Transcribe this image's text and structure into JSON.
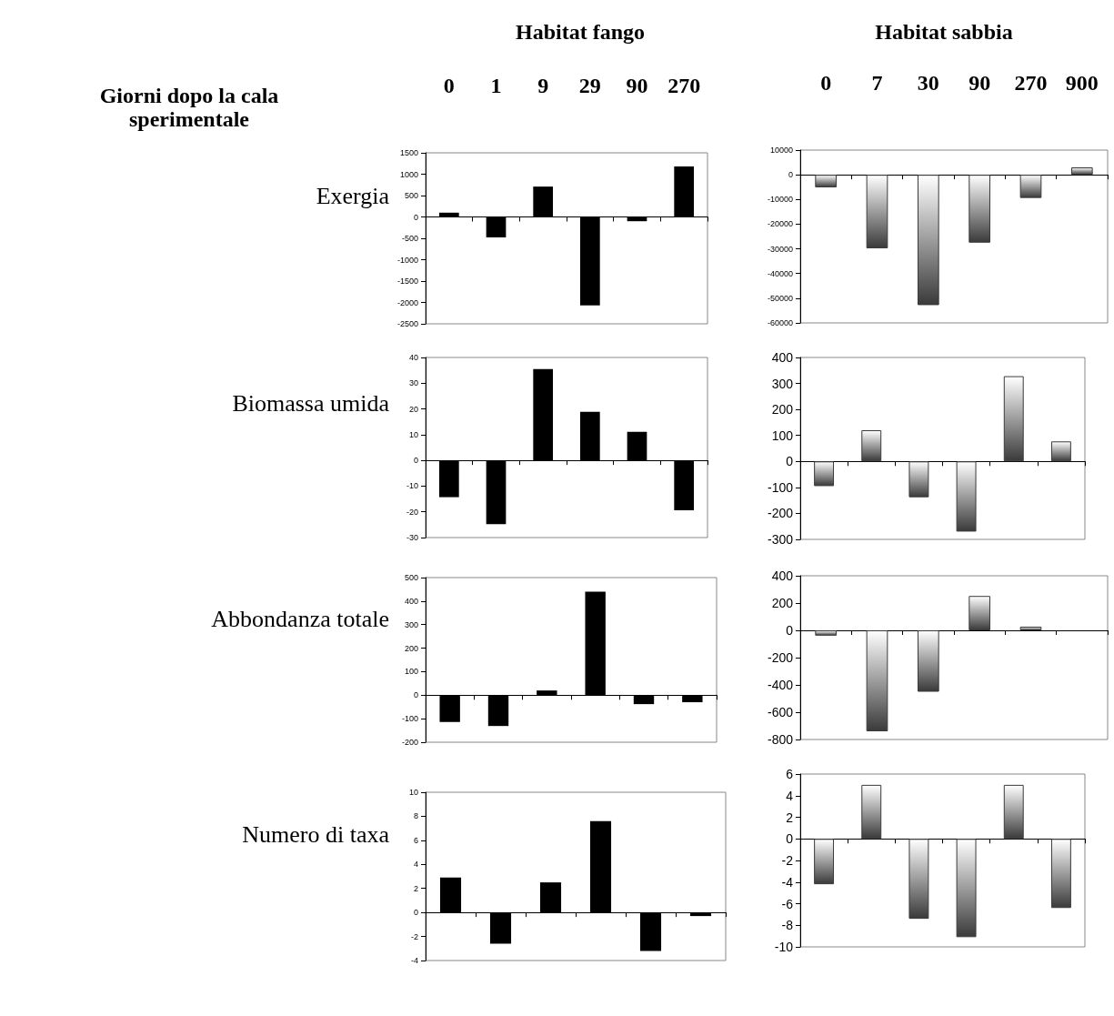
{
  "chart_data": [
    {
      "type": "bar",
      "title": "Habitat fango",
      "xlabel": "Giorni dopo la cala sperimentale",
      "ylabel": "Exergia",
      "categories": [
        "0",
        "1",
        "9",
        "29",
        "90",
        "270"
      ],
      "values": [
        100,
        -480,
        710,
        -2070,
        -100,
        1180
      ],
      "color": "#000000",
      "ylim": [
        -2500,
        1500
      ],
      "yticks": [
        -2500,
        -2000,
        -1500,
        -1000,
        -500,
        0,
        500,
        1000,
        1500
      ]
    },
    {
      "type": "bar",
      "ylabel": "Biomassa  umida",
      "categories": [
        "0",
        "1",
        "9",
        "29",
        "90",
        "270"
      ],
      "values": [
        -14.3,
        -24.8,
        35.5,
        18.9,
        11.1,
        -19.4
      ],
      "color": "#000000",
      "ylim": [
        -30,
        40
      ],
      "yticks": [
        -30,
        -20,
        -10,
        0,
        10,
        20,
        30,
        40
      ],
      "tick_labels": "y"
    },
    {
      "type": "bar",
      "ylabel": "Abbondanza totale",
      "categories": [
        "0",
        "1",
        "9",
        "29",
        "90",
        "270"
      ],
      "values": [
        -114,
        -131,
        20,
        440,
        -38,
        -30
      ],
      "color": "#000000",
      "ylim": [
        -200,
        500
      ],
      "yticks": [
        -200,
        -100,
        0,
        100,
        200,
        300,
        400,
        500
      ],
      "tick_labels": "y"
    },
    {
      "type": "bar",
      "ylabel": "Numero di taxa",
      "categories": [
        "0",
        "1",
        "9",
        "29",
        "90",
        "270"
      ],
      "values": [
        2.9,
        -2.6,
        2.5,
        7.6,
        -3.2,
        -0.3
      ],
      "color": "#000000",
      "ylim": [
        -4,
        10
      ],
      "yticks": [
        -4,
        -2,
        0,
        2,
        4,
        6,
        8,
        10
      ],
      "tick_labels": "y"
    },
    {
      "type": "bar",
      "title": "Habitat sabbia",
      "categories": [
        "0",
        "7",
        "30",
        "90",
        "270",
        "900"
      ],
      "values": [
        -5100,
        -29800,
        -52800,
        -27500,
        -9400,
        3000
      ],
      "color": "#3a3a3a",
      "ylim": [
        -60000,
        10000
      ],
      "yticks": [
        -60000,
        -50000,
        -40000,
        -30000,
        -20000,
        -10000,
        0,
        10000
      ]
    },
    {
      "type": "bar",
      "categories": [
        "0",
        "7",
        "30",
        "90",
        "270",
        "900"
      ],
      "values": [
        -95,
        120,
        -138,
        -270,
        328,
        77
      ],
      "color": "#3a3a3a",
      "ylim": [
        -300,
        400
      ],
      "yticks": [
        -300,
        -200,
        -100,
        0,
        100,
        200,
        300,
        400
      ],
      "tick_labels": "y"
    },
    {
      "type": "bar",
      "categories": [
        "0",
        "7",
        "30",
        "90",
        "270",
        "900"
      ],
      "values": [
        -39,
        -740,
        -450,
        252,
        27,
        null
      ],
      "color": "#3a3a3a",
      "ylim": [
        -800,
        400
      ],
      "yticks": [
        -800,
        -600,
        -400,
        -200,
        0,
        200,
        400
      ],
      "tick_labels": "y"
    },
    {
      "type": "bar",
      "categories": [
        "0",
        "7",
        "30",
        "90",
        "270",
        "900"
      ],
      "values": [
        -4.2,
        5,
        -7.4,
        -9.1,
        5,
        -6.4
      ],
      "color": "#3a3a3a",
      "ylim": [
        -10,
        6
      ],
      "yticks": [
        -10,
        -8,
        -6,
        -4,
        -2,
        0,
        2,
        4,
        6
      ],
      "tick_labels": "y"
    }
  ]
}
